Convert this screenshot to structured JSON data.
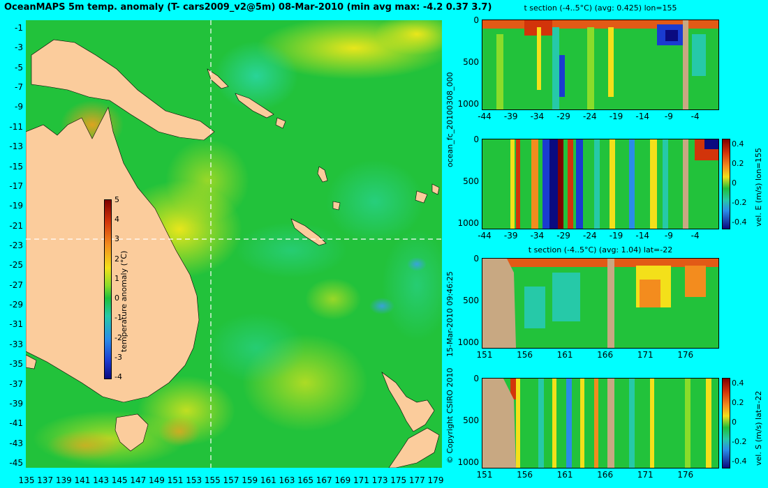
{
  "header": {
    "title": "OceanMAPS 5m temp. anomaly (T- cars2009_v2@5m) 08-Mar-2010 (min avg max: -4.2 0.37 3.7)"
  },
  "map": {
    "x_ticks": [
      "135",
      "137",
      "139",
      "141",
      "143",
      "145",
      "147",
      "149",
      "151",
      "153",
      "155",
      "157",
      "159",
      "161",
      "163",
      "165",
      "167",
      "169",
      "171",
      "173",
      "175",
      "177",
      "179"
    ],
    "y_ticks": [
      "-1",
      "-3",
      "-5",
      "-7",
      "-9",
      "-11",
      "-13",
      "-15",
      "-17",
      "-19",
      "-21",
      "-23",
      "-25",
      "-27",
      "-29",
      "-31",
      "-33",
      "-35",
      "-37",
      "-39",
      "-41",
      "-43",
      "-45"
    ],
    "section_lon": 155,
    "section_lat": -22,
    "colorbar": {
      "label": "temperature anomaly (°C)",
      "ticks": [
        "5",
        "4",
        "3",
        "2",
        "1",
        "0",
        "-1",
        "-2",
        "-3",
        "-4"
      ],
      "range": [
        -4,
        5
      ]
    },
    "land_color": "#fbcc9c"
  },
  "side_labels": {
    "run_id": "ocean_fc_20100308_000",
    "issued": "15-Mar-2010 09:46:25",
    "copyright": "© Copyright CSIRO 2010"
  },
  "panels": [
    {
      "title": "t section (-4..5°C) (avg: 0.425) lon=155",
      "x_ticks": [
        "-44",
        "-39",
        "-34",
        "-29",
        "-24",
        "-19",
        "-14",
        "-9",
        "-4"
      ],
      "y_ticks": [
        "0",
        "500",
        "1000"
      ],
      "colorbar": null
    },
    {
      "title": "",
      "x_ticks": [
        "-44",
        "-39",
        "-34",
        "-29",
        "-24",
        "-19",
        "-14",
        "-9",
        "-4"
      ],
      "y_ticks": [
        "0",
        "500",
        "1000"
      ],
      "colorbar": {
        "label": "vel. E (m/s) lon=155",
        "ticks": [
          "0.4",
          "0.2",
          "0",
          "-0.2",
          "-0.4"
        ]
      }
    },
    {
      "title": "t section (-4..5°C) (avg: 1.04) lat=-22",
      "x_ticks": [
        "151",
        "156",
        "161",
        "166",
        "171",
        "176"
      ],
      "y_ticks": [
        "0",
        "500",
        "1000"
      ],
      "colorbar": null
    },
    {
      "title": "",
      "x_ticks": [
        "151",
        "156",
        "161",
        "166",
        "171",
        "176"
      ],
      "y_ticks": [
        "0",
        "500",
        "1000"
      ],
      "colorbar": {
        "label": "vel. S (m/s) lat=-22",
        "ticks": [
          "0.4",
          "0.2",
          "0",
          "-0.2",
          "-0.4"
        ]
      }
    }
  ]
}
